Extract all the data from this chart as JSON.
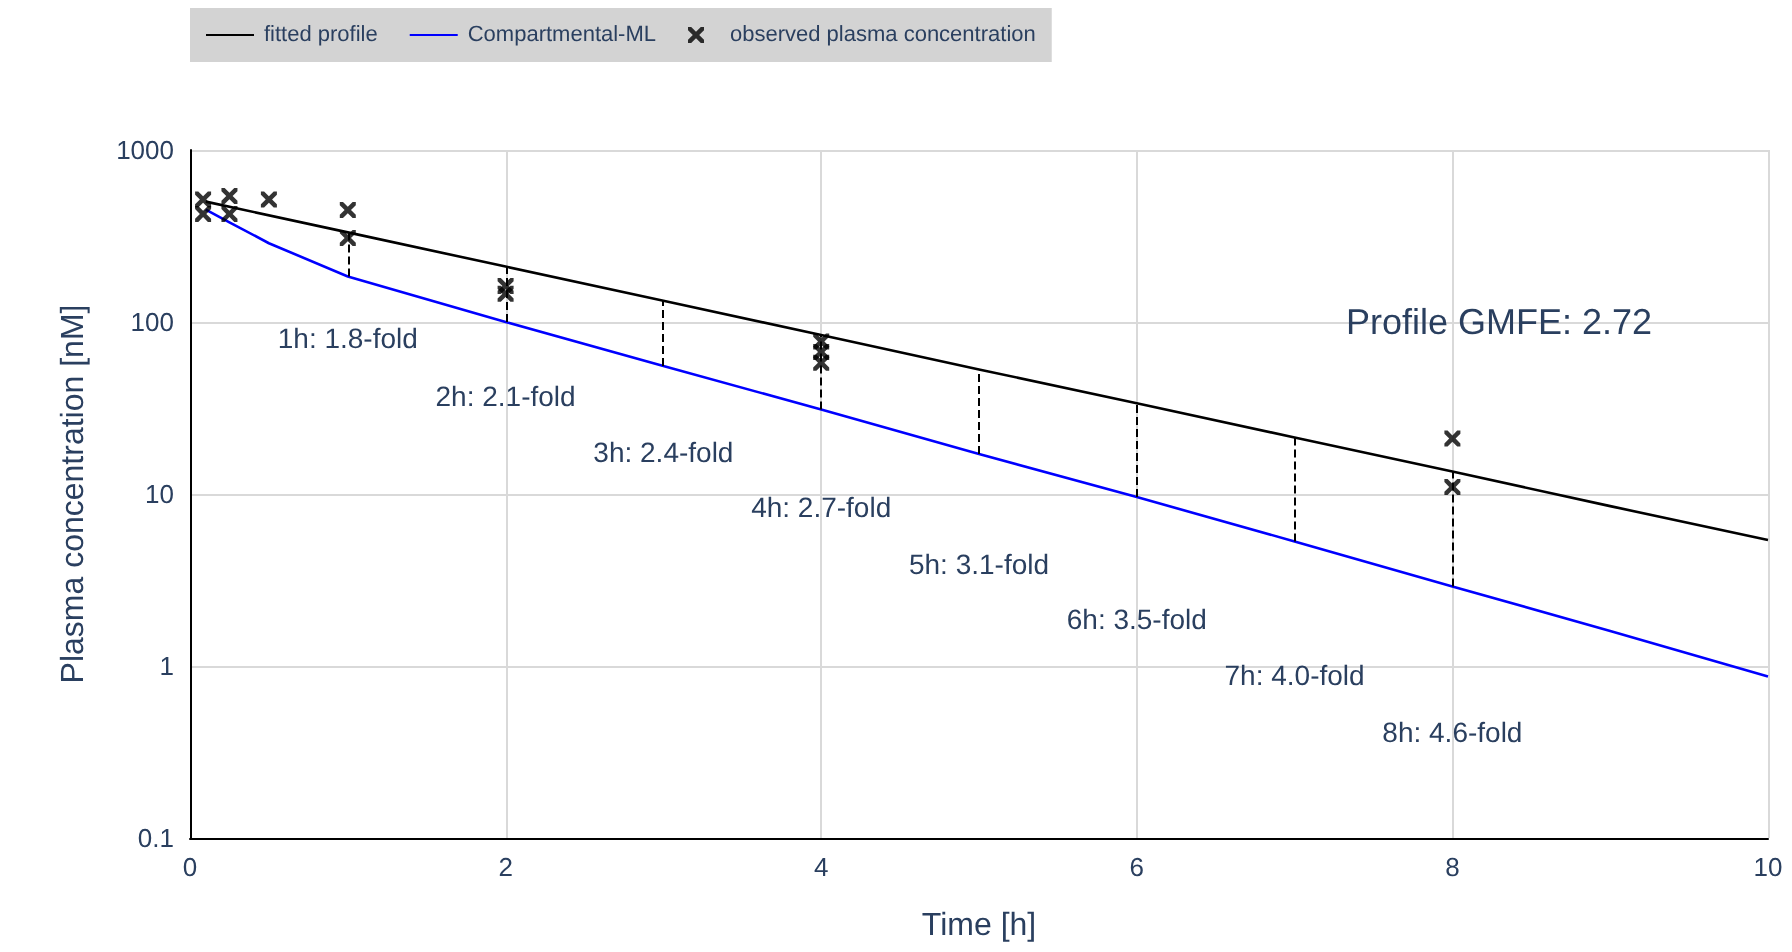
{
  "chart_data": {
    "type": "line",
    "xlabel": "Time [h]",
    "ylabel": "Plasma concentration [nM]",
    "xlim": [
      0,
      10
    ],
    "xticks": [
      0,
      2,
      4,
      6,
      8,
      10
    ],
    "ylim": [
      0.1,
      1000
    ],
    "yticks": [
      0.1,
      1,
      10,
      100,
      1000
    ],
    "log": "y",
    "grid": true,
    "legend": "top left",
    "line_style": "solid",
    "series": [
      {
        "name": "fitted profile",
        "color": "#000000",
        "x": [
          0.1,
          1,
          2,
          3,
          4,
          5,
          6,
          7,
          8,
          9,
          10
        ],
        "values": [
          501,
          332,
          210,
          133,
          84,
          53,
          33.7,
          21.3,
          13.5,
          8.5,
          5.4
        ]
      },
      {
        "name": "Compartmental-ML",
        "color": "#0000ff",
        "x": [
          0.1,
          0.25,
          0.5,
          1,
          2,
          3,
          4,
          5,
          6,
          7,
          8,
          9,
          10
        ],
        "values": [
          450,
          380,
          287,
          184,
          100,
          55.4,
          31,
          17.1,
          9.6,
          5.3,
          2.9,
          1.6,
          0.87
        ],
        "errors": [
          null,
          null,
          null,
          [
            184,
            332
          ],
          [
            100,
            210
          ],
          [
            55.4,
            133
          ],
          [
            31,
            84
          ],
          [
            17.1,
            53
          ],
          [
            9.6,
            33.7
          ],
          [
            5.3,
            21.3
          ],
          [
            2.9,
            13.5
          ],
          null,
          null
        ]
      },
      {
        "name": "observed plasma concentration",
        "type": "scatter",
        "marker": "cross",
        "color": "#000000",
        "x": [
          0.083,
          0.083,
          0.25,
          0.25,
          0.5,
          1,
          1,
          2,
          2,
          4,
          4,
          4,
          8,
          8
        ],
        "values": [
          515,
          425,
          540,
          425,
          515,
          448,
          308,
          162,
          146,
          77,
          67,
          58,
          21,
          11
        ]
      }
    ],
    "annotations": [
      "1h: 1.8-fold",
      "2h: 2.1-fold",
      "3h: 2.4-fold",
      "4h: 2.7-fold",
      "5h: 3.1-fold",
      "6h: 3.5-fold",
      "7h: 4.0-fold",
      "8h: 4.6-fold",
      "Profile GMFE: 2.72"
    ]
  }
}
